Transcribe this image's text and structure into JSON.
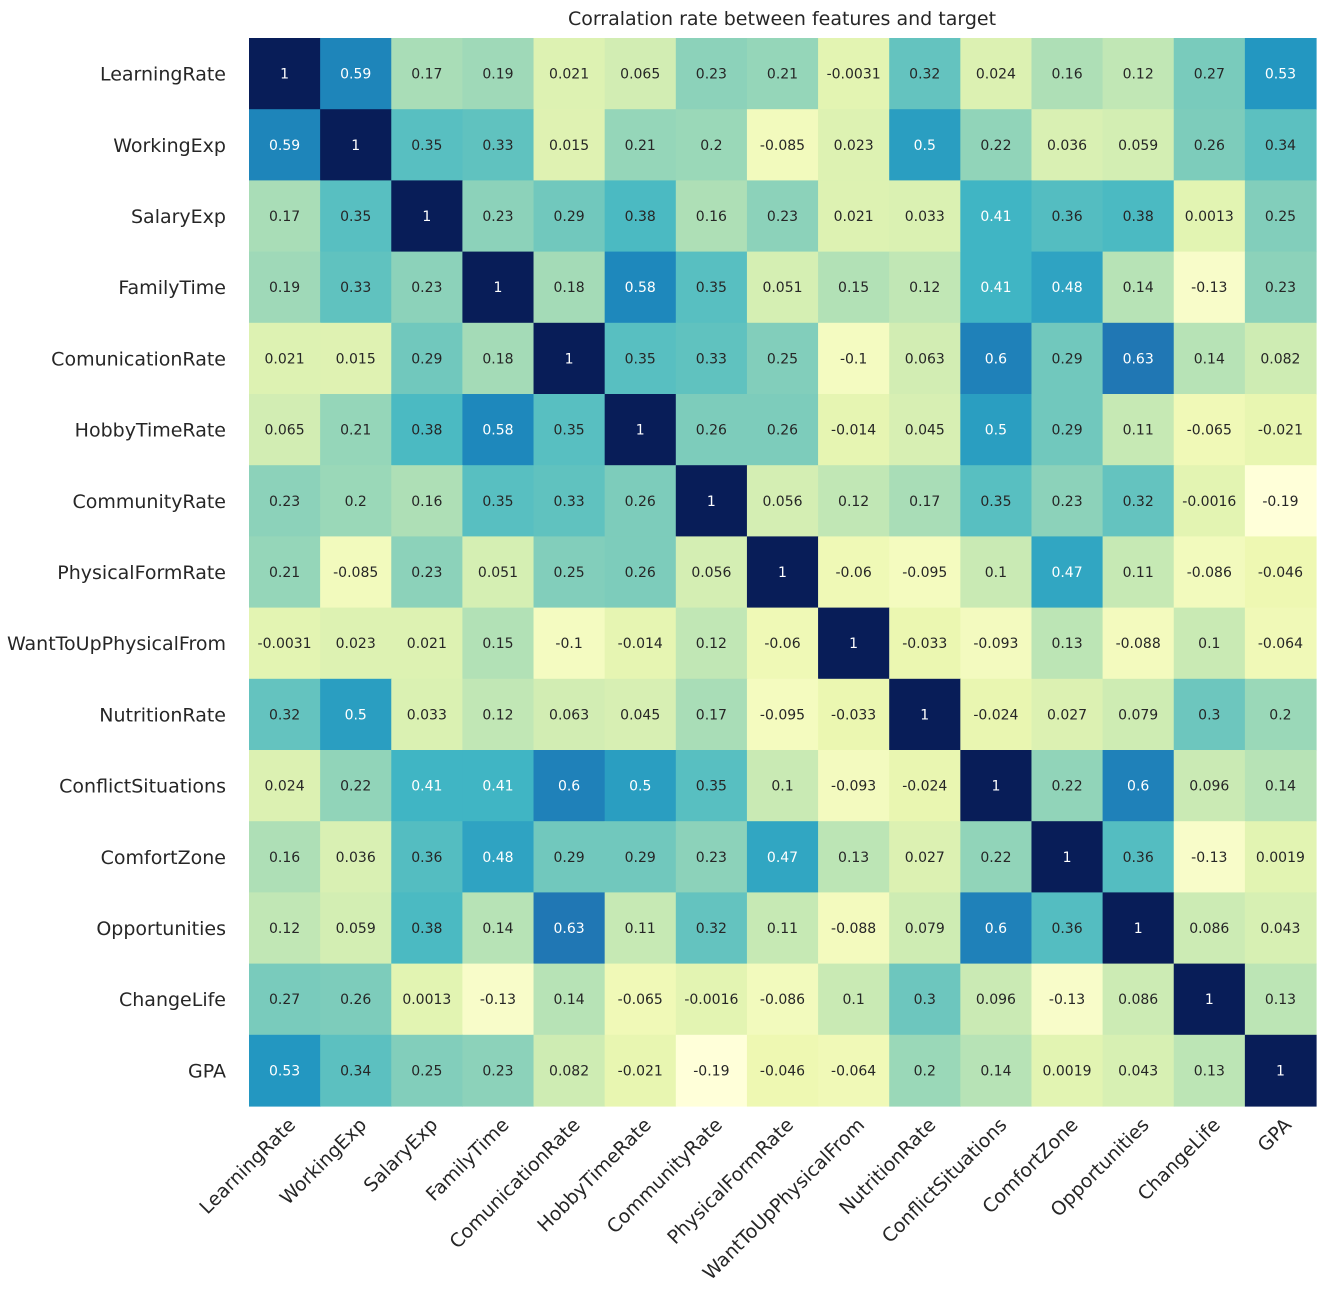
{
  "chart_data": {
    "type": "heatmap",
    "title": "Corralation rate between features and target",
    "colormap": "YlGnBu",
    "value_range": [
      -0.19,
      1
    ],
    "labels": [
      "LearningRate",
      "WorkingExp",
      "SalaryExp",
      "FamilyTime",
      "ComunicationRate",
      "HobbyTimeRate",
      "CommunityRate",
      "PhysicalFormRate",
      "WantToUpPhysicalFrom",
      "NutritionRate",
      "ConflictSituations",
      "ComfortZone",
      "Opportunities",
      "ChangeLife",
      "GPA"
    ],
    "matrix": [
      [
        "1",
        "0.59",
        "0.17",
        "0.19",
        "0.021",
        "0.065",
        "0.23",
        "0.21",
        "-0.0031",
        "0.32",
        "0.024",
        "0.16",
        "0.12",
        "0.27",
        "0.53"
      ],
      [
        "0.59",
        "1",
        "0.35",
        "0.33",
        "0.015",
        "0.21",
        "0.2",
        "-0.085",
        "0.023",
        "0.5",
        "0.22",
        "0.036",
        "0.059",
        "0.26",
        "0.34"
      ],
      [
        "0.17",
        "0.35",
        "1",
        "0.23",
        "0.29",
        "0.38",
        "0.16",
        "0.23",
        "0.021",
        "0.033",
        "0.41",
        "0.36",
        "0.38",
        "0.0013",
        "0.25"
      ],
      [
        "0.19",
        "0.33",
        "0.23",
        "1",
        "0.18",
        "0.58",
        "0.35",
        "0.051",
        "0.15",
        "0.12",
        "0.41",
        "0.48",
        "0.14",
        "-0.13",
        "0.23"
      ],
      [
        "0.021",
        "0.015",
        "0.29",
        "0.18",
        "1",
        "0.35",
        "0.33",
        "0.25",
        "-0.1",
        "0.063",
        "0.6",
        "0.29",
        "0.63",
        "0.14",
        "0.082"
      ],
      [
        "0.065",
        "0.21",
        "0.38",
        "0.58",
        "0.35",
        "1",
        "0.26",
        "0.26",
        "-0.014",
        "0.045",
        "0.5",
        "0.29",
        "0.11",
        "-0.065",
        "-0.021"
      ],
      [
        "0.23",
        "0.2",
        "0.16",
        "0.35",
        "0.33",
        "0.26",
        "1",
        "0.056",
        "0.12",
        "0.17",
        "0.35",
        "0.23",
        "0.32",
        "-0.0016",
        "-0.19"
      ],
      [
        "0.21",
        "-0.085",
        "0.23",
        "0.051",
        "0.25",
        "0.26",
        "0.056",
        "1",
        "-0.06",
        "-0.095",
        "0.1",
        "0.47",
        "0.11",
        "-0.086",
        "-0.046"
      ],
      [
        "-0.0031",
        "0.023",
        "0.021",
        "0.15",
        "-0.1",
        "-0.014",
        "0.12",
        "-0.06",
        "1",
        "-0.033",
        "-0.093",
        "0.13",
        "-0.088",
        "0.1",
        "-0.064"
      ],
      [
        "0.32",
        "0.5",
        "0.033",
        "0.12",
        "0.063",
        "0.045",
        "0.17",
        "-0.095",
        "-0.033",
        "1",
        "-0.024",
        "0.027",
        "0.079",
        "0.3",
        "0.2"
      ],
      [
        "0.024",
        "0.22",
        "0.41",
        "0.41",
        "0.6",
        "0.5",
        "0.35",
        "0.1",
        "-0.093",
        "-0.024",
        "1",
        "0.22",
        "0.6",
        "0.096",
        "0.14"
      ],
      [
        "0.16",
        "0.036",
        "0.36",
        "0.48",
        "0.29",
        "0.29",
        "0.23",
        "0.47",
        "0.13",
        "0.027",
        "0.22",
        "1",
        "0.36",
        "-0.13",
        "0.0019"
      ],
      [
        "0.12",
        "0.059",
        "0.38",
        "0.14",
        "0.63",
        "0.11",
        "0.32",
        "0.11",
        "-0.088",
        "0.079",
        "0.6",
        "0.36",
        "1",
        "0.086",
        "0.043"
      ],
      [
        "0.27",
        "0.26",
        "0.0013",
        "-0.13",
        "0.14",
        "-0.065",
        "-0.0016",
        "-0.086",
        "0.1",
        "0.3",
        "0.096",
        "-0.13",
        "0.086",
        "1",
        "0.13"
      ],
      [
        "0.53",
        "0.34",
        "0.25",
        "0.23",
        "0.082",
        "-0.021",
        "-0.19",
        "-0.046",
        "-0.064",
        "0.2",
        "0.14",
        "0.0019",
        "0.043",
        "0.13",
        "1"
      ]
    ]
  }
}
